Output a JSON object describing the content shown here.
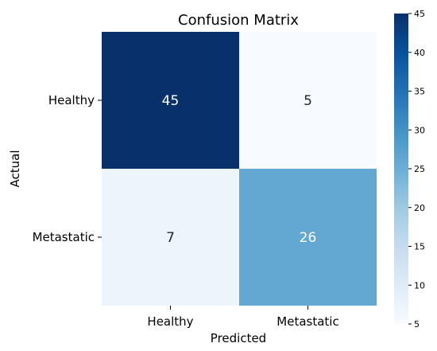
{
  "chart_data": {
    "type": "heatmap",
    "title": "Confusion Matrix",
    "xlabel": "Predicted",
    "ylabel": "Actual",
    "x_categories": [
      "Healthy",
      "Metastatic"
    ],
    "y_categories": [
      "Healthy",
      "Metastatic"
    ],
    "values": [
      [
        45,
        5
      ],
      [
        7,
        26
      ]
    ],
    "colorbar": {
      "range": [
        5,
        45
      ],
      "ticks": [
        "5",
        "10",
        "15",
        "20",
        "25",
        "30",
        "35",
        "40",
        "45"
      ],
      "colormap": "Blues",
      "low_color": "#f7fbff",
      "high_color": "#08306b"
    },
    "grid": false
  }
}
